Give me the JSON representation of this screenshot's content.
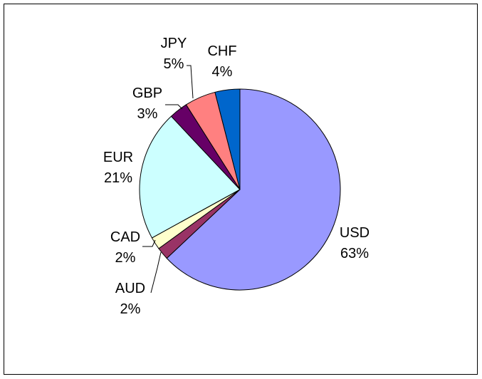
{
  "chart_data": {
    "type": "pie",
    "title": "",
    "start_angle_deg": 0,
    "direction": "clockwise",
    "slices": [
      {
        "label": "USD",
        "value": 63,
        "display": "63%",
        "color": "#9999ff",
        "label_side": "right"
      },
      {
        "label": "AUD",
        "value": 2,
        "display": "2%",
        "color": "#993366",
        "label_side": "left"
      },
      {
        "label": "CAD",
        "value": 2,
        "display": "2%",
        "color": "#ffffcc",
        "label_side": "left"
      },
      {
        "label": "EUR",
        "value": 21,
        "display": "21%",
        "color": "#ccffff",
        "label_side": "left"
      },
      {
        "label": "GBP",
        "value": 3,
        "display": "3%",
        "color": "#660066",
        "label_side": "left"
      },
      {
        "label": "JPY",
        "value": 5,
        "display": "5%",
        "color": "#ff8080",
        "label_side": "left"
      },
      {
        "label": "CHF",
        "value": 4,
        "display": "4%",
        "color": "#0066cc",
        "label_side": "left"
      }
    ],
    "legend": "none",
    "slice_border_color": "#000000"
  }
}
